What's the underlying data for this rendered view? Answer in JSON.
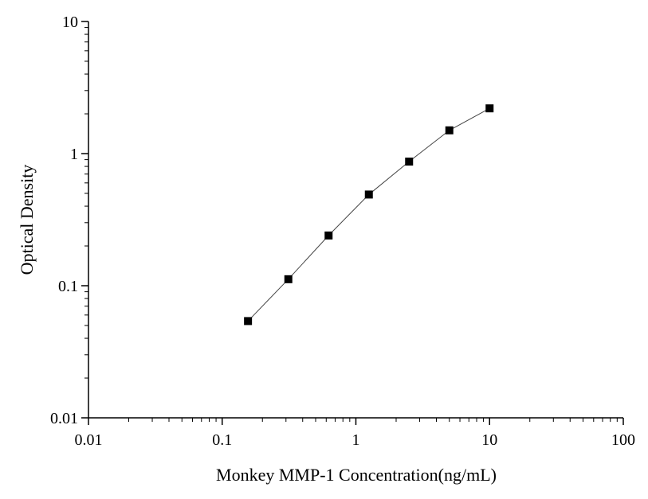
{
  "chart_data": {
    "type": "line",
    "x_label": "Monkey MMP-1 Concentration(ng/mL)",
    "y_label": "Optical Density",
    "x": [
      0.156,
      0.3125,
      0.625,
      1.25,
      2.5,
      5,
      10
    ],
    "series": [
      {
        "color": "#000000",
        "values": [
          0.054,
          0.112,
          0.24,
          0.49,
          0.87,
          1.5,
          2.2
        ]
      }
    ],
    "x_log": true,
    "y_log": true,
    "xlim": [
      0.01,
      100
    ],
    "ylim": [
      0.01,
      10
    ],
    "xticks": [
      0.01,
      0.1,
      1,
      10,
      100
    ],
    "yticks": [
      0.01,
      0.1,
      1,
      10
    ],
    "grid": false
  }
}
